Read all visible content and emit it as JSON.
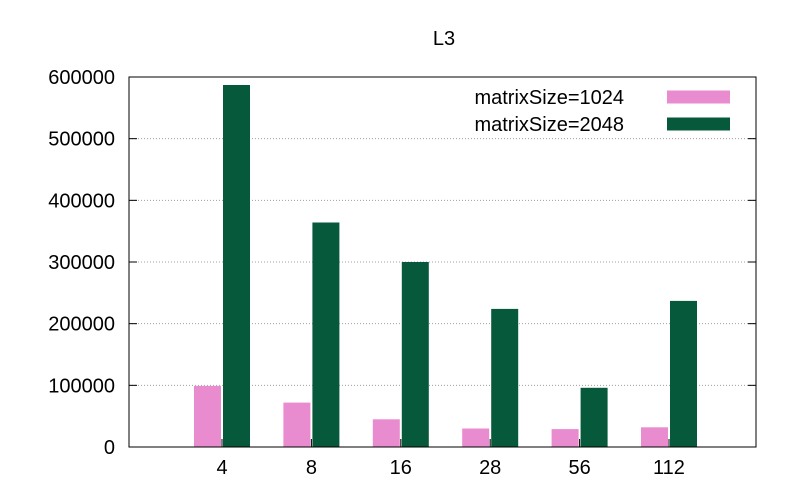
{
  "chart_data": {
    "type": "bar",
    "title": "L3",
    "xlabel": "",
    "ylabel": "",
    "categories": [
      "4",
      "8",
      "16",
      "28",
      "56",
      "112"
    ],
    "series": [
      {
        "name": "matrixSize=1024",
        "color": "#e98bcf",
        "values": [
          99000,
          72000,
          45000,
          30000,
          29000,
          32000
        ]
      },
      {
        "name": "matrixSize=2048",
        "color": "#07593b",
        "values": [
          587000,
          364000,
          300000,
          224000,
          96000,
          237000
        ]
      }
    ],
    "ylim": [
      0,
      600000
    ],
    "yticks": [
      "0",
      "100000",
      "200000",
      "300000",
      "400000",
      "500000",
      "600000"
    ],
    "grid": "horizontal dotted",
    "legend_position": "top-right"
  }
}
